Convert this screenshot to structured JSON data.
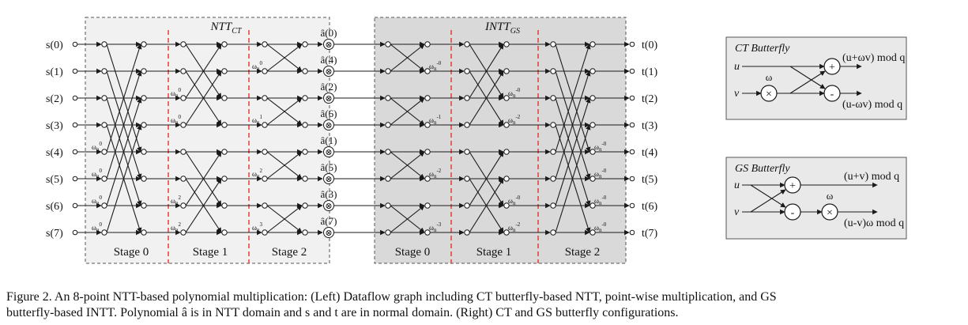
{
  "ntt_block": {
    "title": "NTT",
    "title_sub": "CT",
    "stages": [
      "Stage 0",
      "Stage 1",
      "Stage 2"
    ]
  },
  "intt_block": {
    "title": "INTT",
    "title_sub": "GS",
    "stages": [
      "Stage 0",
      "Stage 1",
      "Stage 2"
    ]
  },
  "inputs": [
    "s(0)",
    "s(1)",
    "s(2)",
    "s(3)",
    "s(4)",
    "s(5)",
    "s(6)",
    "s(7)"
  ],
  "outputs": [
    "t(0)",
    "t(1)",
    "t(2)",
    "t(3)",
    "t(4)",
    "t(5)",
    "t(6)",
    "t(7)"
  ],
  "pointwise": {
    "labels": [
      "â(0)",
      "â(4)",
      "â(2)",
      "â(6)",
      "â(1)",
      "â(5)",
      "â(3)",
      "â(7)"
    ],
    "operator": "⊗"
  },
  "twiddles": {
    "base": "ω",
    "sub": "n",
    "ntt_stage0": [
      "0",
      "0",
      "0",
      "0"
    ],
    "ntt_stage1": [
      "0",
      "0",
      "2",
      "2"
    ],
    "ntt_stage2": [
      "0",
      "1",
      "2",
      "3"
    ],
    "intt_stage0": [
      "-0",
      "-1",
      "-2",
      "-3"
    ],
    "intt_stage1": [
      "-0",
      "-2",
      "-0",
      "-2"
    ],
    "intt_stage2": [
      "-0",
      "-0",
      "-0",
      "-0"
    ]
  },
  "ct_butterfly": {
    "title": "CT Butterfly",
    "input_u": "u",
    "input_v": "v",
    "omega": "ω",
    "plus": "+",
    "minus": "-",
    "times": "×",
    "out_top": "(u+ωv) mod q",
    "out_bottom": "(u-ωv) mod q"
  },
  "gs_butterfly": {
    "title": "GS Butterfly",
    "input_u": "u",
    "input_v": "v",
    "omega": "ω",
    "plus": "+",
    "minus": "-",
    "times": "×",
    "out_top": "(u+v) mod q",
    "out_bottom": "(u-v)ω mod q"
  },
  "caption": {
    "line1": "Figure 2.   An 8-point NTT-based polynomial multiplication: (Left) Dataflow graph including CT butterfly-based NTT, point-wise multiplication, and GS",
    "line2": "butterfly-based INTT. Polynomial â is in NTT domain and s and t are in normal domain. (Right) CT and GS butterfly configurations."
  },
  "colors": {
    "ntt_bg": "#f1f1f1",
    "intt_bg": "#d9d9d9",
    "butterfly_bg": "#e9e9e9",
    "stage_divider": "#e8231c",
    "line": "#1a1a1a"
  }
}
